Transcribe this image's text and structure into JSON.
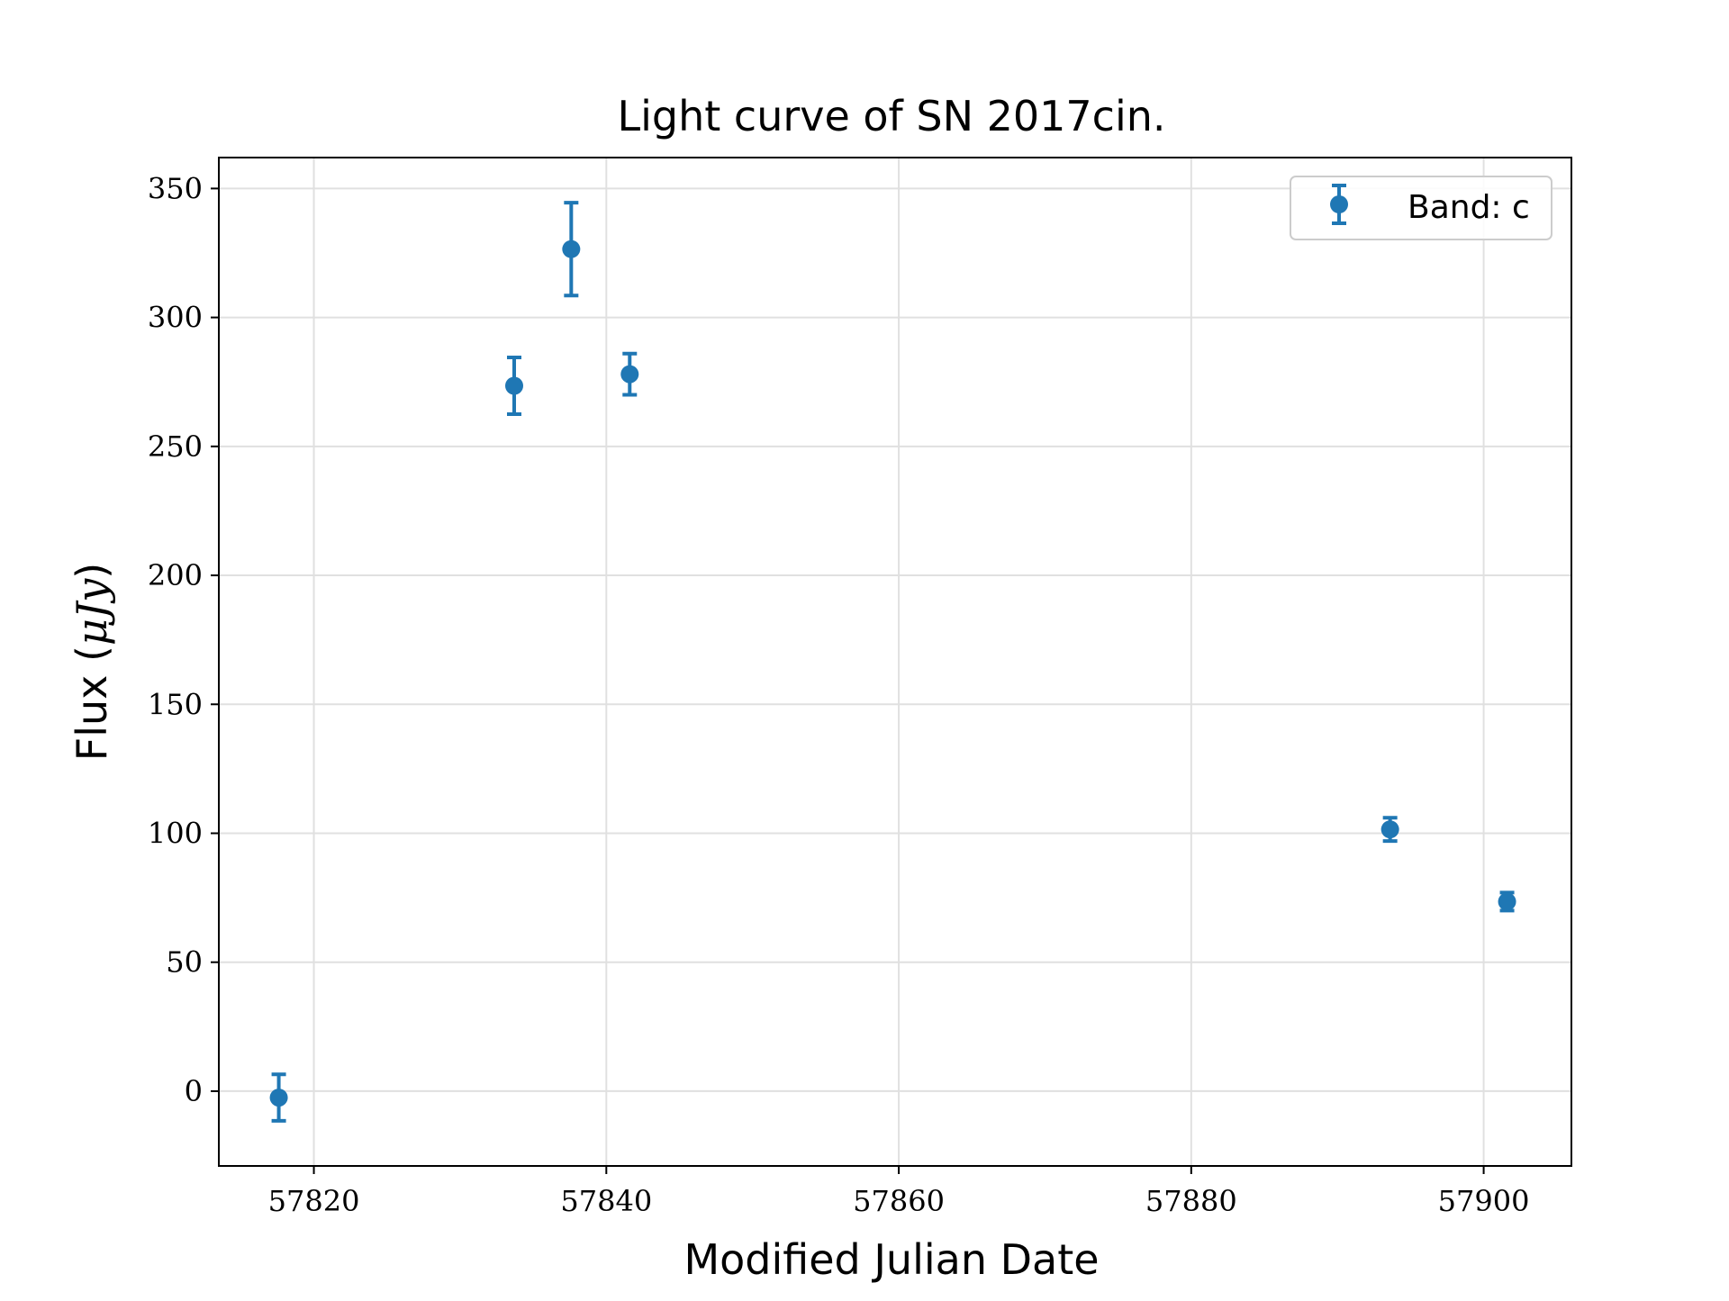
{
  "chart_data": {
    "type": "scatter",
    "title": "Light curve of SN 2017cin.",
    "xlabel": "Modified Julian Date",
    "ylabel_prefix": "Flux (",
    "ylabel_unit": "μJy",
    "ylabel_suffix": ")",
    "xlim": [
      57813.5,
      57906.0
    ],
    "ylim": [
      -29,
      362
    ],
    "xticks": [
      57820,
      57840,
      57860,
      57880,
      57900
    ],
    "yticks": [
      0,
      50,
      100,
      150,
      200,
      250,
      300,
      350
    ],
    "grid": true,
    "legend_position": "top-right",
    "colors": {
      "series": "#1f77b4",
      "grid": "#e0e0e0",
      "axes": "#000000"
    },
    "series": [
      {
        "name": "Band: c",
        "points": [
          {
            "x": 57817.6,
            "y": -2.5,
            "err": 9
          },
          {
            "x": 57833.7,
            "y": 273.5,
            "err": 11
          },
          {
            "x": 57837.6,
            "y": 326.5,
            "err": 18
          },
          {
            "x": 57841.6,
            "y": 278.0,
            "err": 8
          },
          {
            "x": 57893.6,
            "y": 101.5,
            "err": 4.5
          },
          {
            "x": 57901.6,
            "y": 73.5,
            "err": 3.5
          }
        ]
      }
    ]
  }
}
